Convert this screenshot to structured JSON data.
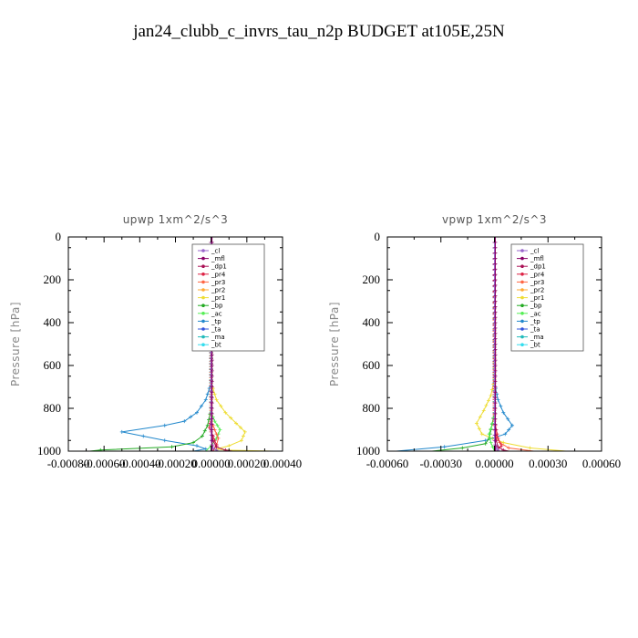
{
  "title": "jan24_clubb_c_invrs_tau_n2p  BUDGET at105E,25N",
  "legend_entries": [
    {
      "name": "_cl",
      "color": "#9966cc"
    },
    {
      "name": "_mfl",
      "color": "#880066"
    },
    {
      "name": "_dp1",
      "color": "#aa1155"
    },
    {
      "name": "_pr4",
      "color": "#dd2244"
    },
    {
      "name": "_pr3",
      "color": "#ff6644"
    },
    {
      "name": "_pr2",
      "color": "#ffaa33"
    },
    {
      "name": "_pr1",
      "color": "#eedd33"
    },
    {
      "name": "_bp",
      "color": "#22aa22"
    },
    {
      "name": "_ac",
      "color": "#55ee55"
    },
    {
      "name": "_tp",
      "color": "#2288cc"
    },
    {
      "name": "_ta",
      "color": "#3355dd"
    },
    {
      "name": "_ma",
      "color": "#22bbbb"
    },
    {
      "name": "_bt",
      "color": "#33ddee"
    }
  ],
  "chart_data": [
    {
      "type": "line",
      "title": "upwp   1xm^2/s^3",
      "ylabel": "Pressure [hPa]",
      "xlim": [
        -0.0008,
        0.0004
      ],
      "ylim": [
        1000,
        0
      ],
      "xticks": [
        -0.0008,
        -0.0006,
        -0.0004,
        -0.0002,
        0.0,
        0.0002,
        0.0004
      ],
      "xtick_labels": [
        "-0.00080",
        "-0.00060",
        "-0.00040",
        "-0.00020",
        "0.00000",
        "0.00020",
        "0.00040"
      ],
      "yticks": [
        0,
        200,
        400,
        600,
        800,
        1000
      ],
      "ytick_labels": [
        "0",
        "200",
        "400",
        "600",
        "800",
        "1000"
      ],
      "legend": "top-right",
      "series": [
        {
          "name": "_pr1",
          "color": "#eedd33",
          "x": [
            0,
            0,
            3e-05,
            8e-05,
            0.00014,
            0.00019,
            0.00017,
            0.0001,
            3e-05,
            8e-05,
            0.00035
          ],
          "y": [
            0,
            680,
            760,
            820,
            870,
            910,
            950,
            975,
            990,
            995,
            1000
          ]
        },
        {
          "name": "_tp",
          "color": "#2288cc",
          "x": [
            0,
            0,
            -3e-05,
            -8e-05,
            -0.00015,
            -0.00026,
            -0.0005,
            -0.00026,
            -8e-05,
            -3e-05,
            -0.0001
          ],
          "y": [
            0,
            680,
            760,
            820,
            860,
            880,
            910,
            950,
            975,
            990,
            1000
          ]
        },
        {
          "name": "_bp",
          "color": "#22aa22",
          "x": [
            0,
            0,
            -2e-05,
            -5e-05,
            -0.0001,
            -0.00022,
            -0.00062,
            -0.00068
          ],
          "y": [
            0,
            800,
            880,
            930,
            960,
            980,
            995,
            1000
          ]
        },
        {
          "name": "_ac",
          "color": "#55ee55",
          "x": [
            0,
            0,
            2e-05,
            5e-05,
            3e-05,
            0.0,
            -3e-05
          ],
          "y": [
            0,
            820,
            860,
            900,
            940,
            975,
            1000
          ]
        },
        {
          "name": "_pr3",
          "color": "#ff6644",
          "x": [
            0,
            0,
            2e-05,
            4e-05,
            3e-05,
            1e-05
          ],
          "y": [
            0,
            860,
            900,
            940,
            975,
            1000
          ]
        },
        {
          "name": "_pr4",
          "color": "#dd2244",
          "x": [
            0,
            0,
            -1e-05,
            1e-05,
            3e-05,
            1e-05
          ],
          "y": [
            0,
            850,
            890,
            930,
            970,
            1000
          ]
        },
        {
          "name": "_dp1",
          "color": "#aa1155",
          "x": [
            0,
            0,
            1e-05,
            3e-05,
            8e-05,
            0.00012
          ],
          "y": [
            0,
            900,
            950,
            980,
            995,
            1000
          ]
        },
        {
          "name": "_cl",
          "color": "#9966cc",
          "x": [
            0,
            0,
            5e-06,
            1e-05,
            3e-05,
            4e-05
          ],
          "y": [
            0,
            950,
            970,
            985,
            995,
            1000
          ]
        },
        {
          "name": "_mfl",
          "color": "#880066",
          "x": [
            5e-06,
            5e-06,
            5e-06,
            5e-06,
            5e-06,
            5e-06
          ],
          "y": [
            0,
            200,
            400,
            600,
            800,
            1000
          ]
        }
      ]
    },
    {
      "type": "line",
      "title": "vpwp   1xm^2/s^3",
      "ylabel": "Pressure [hPa]",
      "xlim": [
        -0.0006,
        0.0006
      ],
      "ylim": [
        1000,
        0
      ],
      "xticks": [
        -0.0006,
        -0.0003,
        0.0,
        0.0003,
        0.0006
      ],
      "xtick_labels": [
        "-0.00060",
        "-0.00030",
        "0.00000",
        "0.00030",
        "0.00060"
      ],
      "yticks": [
        0,
        200,
        400,
        600,
        800,
        1000
      ],
      "ytick_labels": [
        "0",
        "200",
        "400",
        "600",
        "800",
        "1000"
      ],
      "legend": "top-right",
      "series": [
        {
          "name": "_pr1",
          "color": "#eedd33",
          "x": [
            0,
            0,
            -2e-05,
            -6e-05,
            -0.0001,
            -7e-05,
            5e-05,
            0.0002,
            0.0004
          ],
          "y": [
            0,
            660,
            740,
            810,
            870,
            920,
            960,
            985,
            1000
          ]
        },
        {
          "name": "_tp",
          "color": "#2288cc",
          "x": [
            0,
            0,
            2e-05,
            5e-05,
            0.0001,
            6e-05,
            -5e-05,
            -0.00028,
            -0.00055
          ],
          "y": [
            0,
            680,
            760,
            820,
            880,
            920,
            950,
            980,
            1000
          ]
        },
        {
          "name": "_bp",
          "color": "#22aa22",
          "x": [
            0,
            0,
            -2e-05,
            -3e-05,
            -5e-05,
            -0.00018,
            -0.00035
          ],
          "y": [
            0,
            820,
            900,
            940,
            965,
            985,
            1000
          ]
        },
        {
          "name": "_ac",
          "color": "#55ee55",
          "x": [
            0,
            0,
            -1e-05,
            -3e-05,
            -2e-05,
            0
          ],
          "y": [
            0,
            820,
            870,
            920,
            960,
            1000
          ]
        },
        {
          "name": "_pr3",
          "color": "#ff6644",
          "x": [
            0,
            0,
            1e-05,
            3e-05,
            8e-05,
            0.00022
          ],
          "y": [
            0,
            880,
            930,
            960,
            985,
            1000
          ]
        },
        {
          "name": "_pr4",
          "color": "#dd2244",
          "x": [
            0,
            0,
            1e-05,
            2e-05,
            4e-05,
            1e-05
          ],
          "y": [
            0,
            860,
            900,
            940,
            975,
            1000
          ]
        },
        {
          "name": "_dp1",
          "color": "#aa1155",
          "x": [
            0,
            0,
            1e-05,
            2e-05,
            5e-05,
            8e-05
          ],
          "y": [
            0,
            900,
            950,
            980,
            995,
            1000
          ]
        },
        {
          "name": "_cl",
          "color": "#9966cc",
          "x": [
            0,
            0,
            5e-06,
            1e-05,
            2e-05,
            3e-05
          ],
          "y": [
            0,
            950,
            970,
            985,
            995,
            1000
          ]
        },
        {
          "name": "_mfl",
          "color": "#880066",
          "x": [
            5e-06,
            5e-06,
            5e-06,
            5e-06,
            5e-06,
            5e-06
          ],
          "y": [
            0,
            200,
            400,
            600,
            800,
            1000
          ]
        }
      ]
    }
  ]
}
